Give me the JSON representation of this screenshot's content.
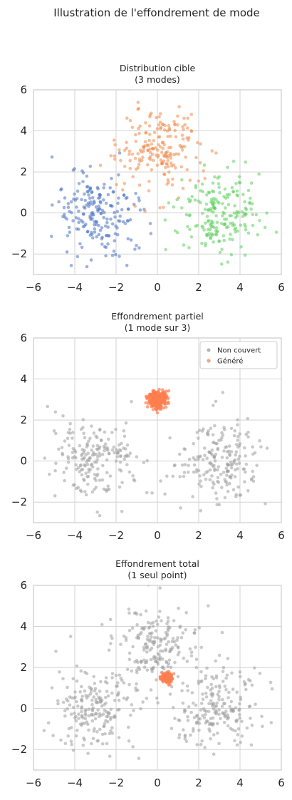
{
  "figure": {
    "suptitle": "Illustration de l'effondrement de mode"
  },
  "colors": {
    "mode1": "#4a72c4",
    "mode2": "#f08a4b",
    "mode3": "#5fcf5f",
    "grey": "#9e9e9e",
    "generated": "#ff7f50",
    "grid": "#d3d3d3",
    "axes_edge": "#cccccc"
  },
  "chart_data": [
    {
      "type": "scatter",
      "title_line1": "Distribution cible",
      "title_line2": "(3 modes)",
      "xlim": [
        -6,
        6
      ],
      "ylim": [
        -3,
        6
      ],
      "xticks": [
        -6,
        -4,
        -2,
        0,
        2,
        4,
        6
      ],
      "yticks": [
        -2,
        0,
        2,
        4,
        6
      ],
      "grid": true,
      "series": [
        {
          "center": [
            -3,
            0
          ],
          "spread": 1.0,
          "count": 200,
          "color_key": "mode1"
        },
        {
          "center": [
            0,
            3
          ],
          "spread": 1.0,
          "count": 200,
          "color_key": "mode2"
        },
        {
          "center": [
            3,
            0
          ],
          "spread": 1.0,
          "count": 200,
          "color_key": "mode3"
        }
      ]
    },
    {
      "type": "scatter",
      "title_line1": "Effondrement partiel",
      "title_line2": "(1 mode sur 3)",
      "xlim": [
        -6,
        6
      ],
      "ylim": [
        -3,
        6
      ],
      "xticks": [
        -6,
        -4,
        -2,
        0,
        2,
        4,
        6
      ],
      "yticks": [
        -2,
        0,
        2,
        4,
        6
      ],
      "grid": true,
      "legend_position": "upper right",
      "series": [
        {
          "name": "Non couvert",
          "center": [
            -3,
            0
          ],
          "spread": 1.0,
          "count": 200,
          "color_key": "grey"
        },
        {
          "center": [
            3,
            0
          ],
          "spread": 1.0,
          "count": 200,
          "color_key": "grey"
        },
        {
          "name": "Généré",
          "center": [
            0,
            3
          ],
          "spread": 0.2,
          "count": 400,
          "color_key": "generated"
        }
      ]
    },
    {
      "type": "scatter",
      "title_line1": "Effondrement total",
      "title_line2": "(1 seul point)",
      "xlim": [
        -6,
        6
      ],
      "ylim": [
        -3,
        6
      ],
      "xticks": [
        -6,
        -4,
        -2,
        0,
        2,
        4,
        6
      ],
      "yticks": [
        -2,
        0,
        2,
        4,
        6
      ],
      "grid": true,
      "series": [
        {
          "center": [
            -3,
            0
          ],
          "spread": 1.0,
          "count": 200,
          "color_key": "grey"
        },
        {
          "center": [
            0,
            3
          ],
          "spread": 1.0,
          "count": 200,
          "color_key": "grey"
        },
        {
          "center": [
            3,
            0
          ],
          "spread": 1.0,
          "count": 200,
          "color_key": "grey"
        },
        {
          "center": [
            0.5,
            1.5
          ],
          "spread": 0.12,
          "count": 200,
          "color_key": "generated"
        }
      ]
    }
  ]
}
